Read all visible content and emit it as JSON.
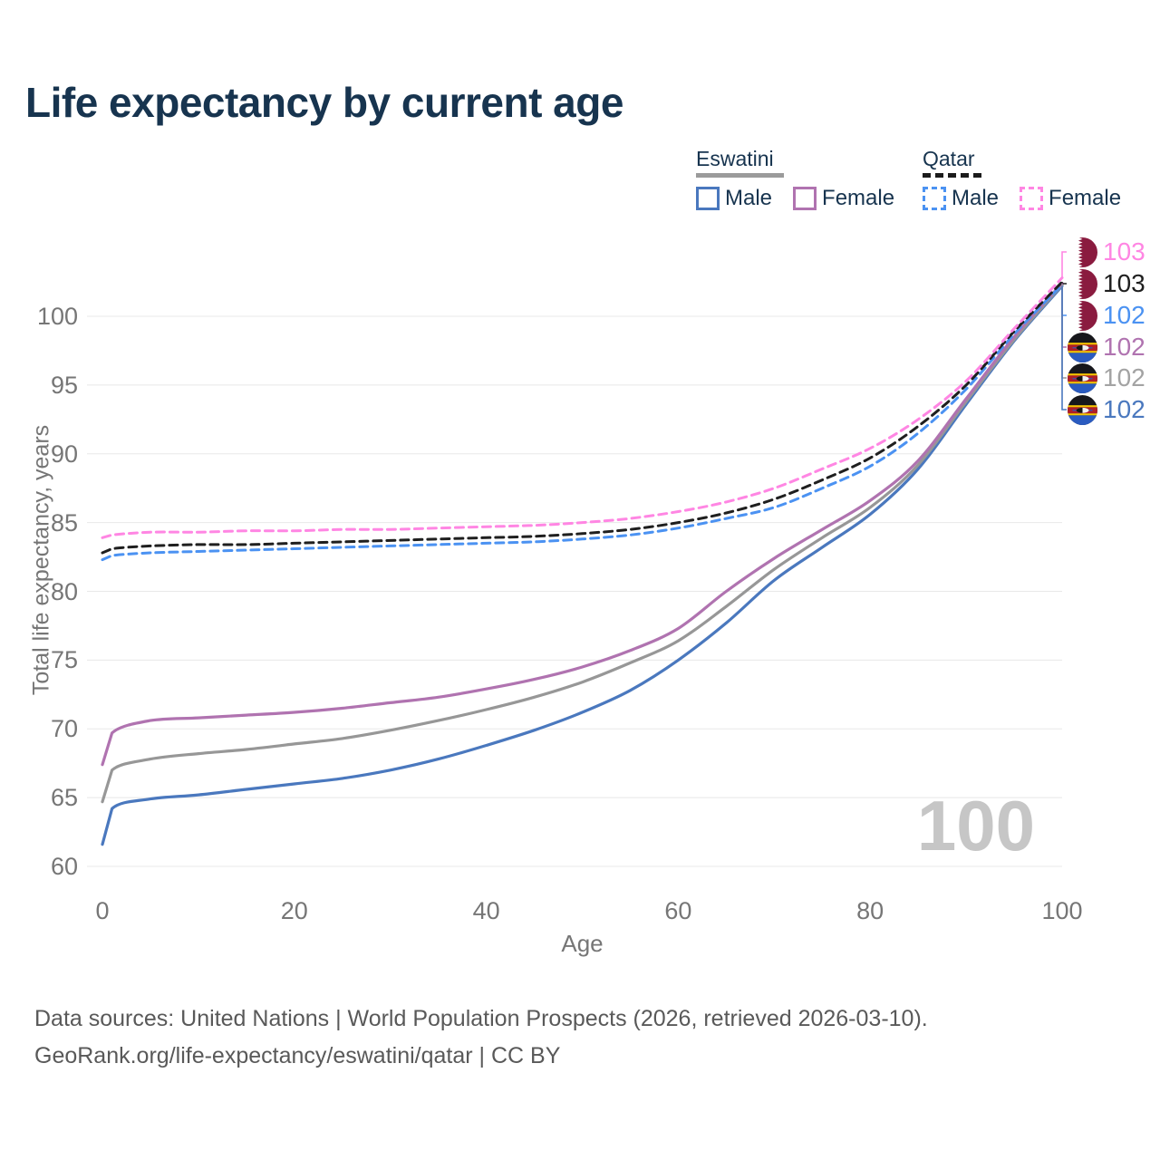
{
  "title": "Life expectancy by current age",
  "watermark_age": "100",
  "legend": {
    "eswatini": {
      "title": "Eswatini",
      "male_label": "Male",
      "female_label": "Female"
    },
    "qatar": {
      "title": "Qatar",
      "male_label": "Male",
      "female_label": "Female"
    }
  },
  "y_axis": {
    "title": "Total life expectancy, years",
    "ticks": [
      60,
      65,
      70,
      75,
      80,
      85,
      90,
      95,
      100
    ]
  },
  "x_axis": {
    "title": "Age",
    "ticks": [
      0,
      20,
      40,
      60,
      80,
      100
    ]
  },
  "footer": {
    "line1": "Data sources: United Nations | World Population Prospects (2026, retrieved 2026-03-10).",
    "line2": "GeoRank.org/life-expectancy/eswatini/qatar | CC BY"
  },
  "colors": {
    "title": "#17344f",
    "axis_text": "#767676",
    "footer_text": "#595959",
    "gridline": "#e8e8e8",
    "watermark": "#c6c6c6",
    "eswatini_underline": "#9b9b9b",
    "qatar_underline": "#1c1c1c"
  },
  "end_labels": [
    {
      "value": "103",
      "series": "qatar_female",
      "flag": "qatar",
      "color": "#ff86e3"
    },
    {
      "value": "103",
      "series": "qatar_total",
      "flag": "qatar",
      "color": "#1f1f1f"
    },
    {
      "value": "102",
      "series": "qatar_male",
      "flag": "qatar",
      "color": "#4b92f2"
    },
    {
      "value": "102",
      "series": "eswatini_female",
      "flag": "eswatini",
      "color": "#b073b0"
    },
    {
      "value": "102",
      "series": "eswatini_total",
      "flag": "eswatini",
      "color": "#a3a3a3"
    },
    {
      "value": "102",
      "series": "eswatini_male",
      "flag": "eswatini",
      "color": "#4a78be"
    }
  ],
  "chart_data": {
    "type": "line",
    "title": "Life expectancy by current age",
    "xlabel": "Age",
    "ylabel": "Total life expectancy, years",
    "xlim": [
      0,
      100
    ],
    "ylim": [
      60,
      100
    ],
    "grid": "horizontal",
    "legend_position": "top-right",
    "x_ages": [
      0,
      1,
      5,
      10,
      15,
      20,
      25,
      30,
      35,
      40,
      45,
      50,
      55,
      60,
      65,
      70,
      75,
      80,
      85,
      90,
      95,
      100
    ],
    "series": [
      {
        "key": "eswatini_male",
        "name": "Eswatini Male",
        "country": "Eswatini",
        "sex": "Male",
        "color": "#4a78be",
        "dashed": false,
        "values": [
          61.6,
          64.2,
          64.9,
          65.2,
          65.6,
          66.0,
          66.4,
          67.0,
          67.8,
          68.8,
          69.9,
          71.2,
          72.8,
          75.0,
          77.7,
          80.8,
          83.2,
          85.6,
          88.9,
          93.6,
          98.2,
          102.2
        ]
      },
      {
        "key": "eswatini_total",
        "name": "Eswatini (both sexes)",
        "country": "Eswatini",
        "sex": "Both",
        "color": "#979797",
        "dashed": false,
        "values": [
          64.7,
          67.0,
          67.8,
          68.2,
          68.5,
          68.9,
          69.3,
          69.9,
          70.6,
          71.4,
          72.3,
          73.4,
          74.8,
          76.4,
          78.9,
          81.6,
          83.9,
          86.1,
          89.2,
          93.8,
          98.3,
          102.3
        ]
      },
      {
        "key": "eswatini_female",
        "name": "Eswatini Female",
        "country": "Eswatini",
        "sex": "Female",
        "color": "#b073b0",
        "dashed": false,
        "values": [
          67.4,
          69.7,
          70.6,
          70.8,
          71.0,
          71.2,
          71.5,
          71.9,
          72.3,
          72.9,
          73.6,
          74.5,
          75.7,
          77.3,
          80.0,
          82.4,
          84.5,
          86.6,
          89.5,
          94.0,
          98.5,
          102.4
        ]
      },
      {
        "key": "qatar_male",
        "name": "Qatar Male",
        "country": "Qatar",
        "sex": "Male",
        "color": "#4b92f2",
        "dashed": true,
        "values": [
          82.3,
          82.6,
          82.8,
          82.9,
          83.0,
          83.1,
          83.2,
          83.3,
          83.4,
          83.5,
          83.6,
          83.8,
          84.1,
          84.6,
          85.3,
          86.1,
          87.5,
          89.1,
          91.5,
          94.7,
          98.7,
          102.3
        ]
      },
      {
        "key": "qatar_total",
        "name": "Qatar (both sexes)",
        "country": "Qatar",
        "sex": "Both",
        "color": "#1f1f1f",
        "dashed": true,
        "values": [
          82.8,
          83.1,
          83.3,
          83.4,
          83.4,
          83.5,
          83.6,
          83.7,
          83.8,
          83.9,
          84.0,
          84.2,
          84.5,
          85.0,
          85.7,
          86.7,
          88.1,
          89.7,
          92.0,
          95.0,
          98.9,
          102.5
        ]
      },
      {
        "key": "qatar_female",
        "name": "Qatar Female",
        "country": "Qatar",
        "sex": "Female",
        "color": "#ff86e3",
        "dashed": true,
        "values": [
          83.9,
          84.1,
          84.3,
          84.3,
          84.4,
          84.4,
          84.5,
          84.5,
          84.6,
          84.7,
          84.8,
          85.0,
          85.3,
          85.8,
          86.5,
          87.5,
          88.9,
          90.4,
          92.5,
          95.3,
          99.1,
          102.8
        ]
      }
    ]
  }
}
